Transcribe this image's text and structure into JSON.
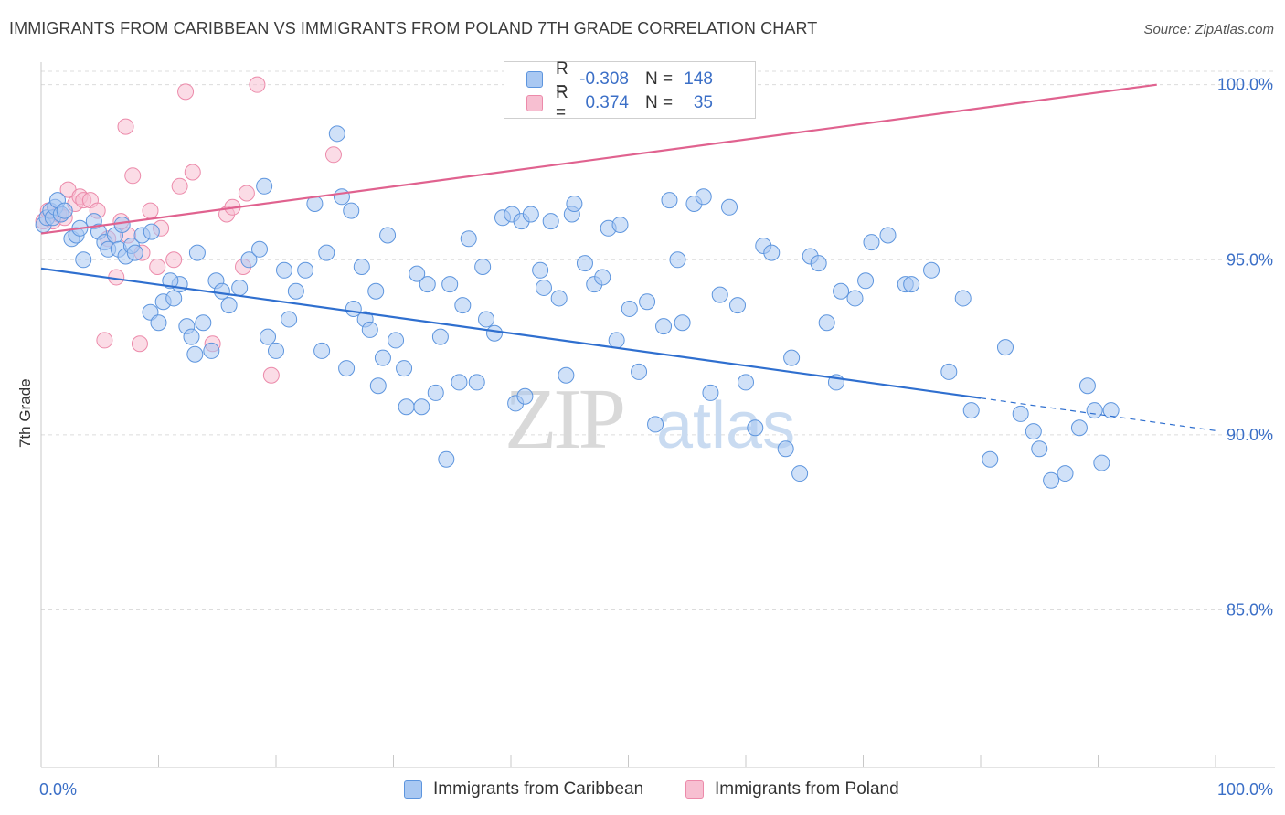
{
  "title": "IMMIGRANTS FROM CARIBBEAN VS IMMIGRANTS FROM POLAND 7TH GRADE CORRELATION CHART",
  "source": "Source: ZipAtlas.com",
  "watermark": {
    "zip": "ZIP",
    "atlas": "atlas"
  },
  "legend": {
    "rows": [
      {
        "r_label": "R =",
        "r_value": "-0.308",
        "n_label": "N =",
        "n_value": "148"
      },
      {
        "r_label": "R =",
        "r_value": "0.374",
        "n_label": "N =",
        "n_value": "35"
      }
    ]
  },
  "bottom_legend": {
    "series1": "Immigrants from Caribbean",
    "series2": "Immigrants from Poland"
  },
  "colors": {
    "blue_fill": "#a9c8f2",
    "blue_stroke": "#5d95de",
    "blue_line": "#2f6fcf",
    "pink_fill": "#f7bfd1",
    "pink_stroke": "#ec8aaa",
    "pink_line": "#e0628f",
    "tick_label": "#3b6fc7",
    "grid": "#dcdcdc"
  },
  "chart_data": {
    "type": "scatter",
    "title": "IMMIGRANTS FROM CARIBBEAN VS IMMIGRANTS FROM POLAND 7TH GRADE CORRELATION CHART",
    "xlabel": "",
    "ylabel": "7th Grade",
    "xlim": [
      0,
      100
    ],
    "ylim": [
      80.5,
      100.8
    ],
    "x_tick_labels": [
      "0.0%",
      "100.0%"
    ],
    "y_ticks": [
      85,
      90,
      95,
      100
    ],
    "y_tick_labels": [
      "85.0%",
      "90.0%",
      "95.0%",
      "100.0%"
    ],
    "grid": true,
    "series": [
      {
        "name": "Immigrants from Caribbean",
        "color": "blue",
        "R": -0.308,
        "N": 148,
        "trend": {
          "x0": 0,
          "y0": 94.75,
          "x1": 80,
          "y1": 91.05,
          "dash_to_x": 100,
          "dash_to_y": 90.12
        },
        "points": [
          [
            0.2,
            96.0
          ],
          [
            0.5,
            96.2
          ],
          [
            0.8,
            96.4
          ],
          [
            1.0,
            96.2
          ],
          [
            1.2,
            96.5
          ],
          [
            1.4,
            96.7
          ],
          [
            1.7,
            96.3
          ],
          [
            2.0,
            96.4
          ],
          [
            2.6,
            95.6
          ],
          [
            3.0,
            95.7
          ],
          [
            3.3,
            95.9
          ],
          [
            3.6,
            95.0
          ],
          [
            4.5,
            96.1
          ],
          [
            4.9,
            95.8
          ],
          [
            5.4,
            95.5
          ],
          [
            5.7,
            95.3
          ],
          [
            6.3,
            95.7
          ],
          [
            6.6,
            95.3
          ],
          [
            6.9,
            96.0
          ],
          [
            7.2,
            95.1
          ],
          [
            7.7,
            95.4
          ],
          [
            8.0,
            95.2
          ],
          [
            8.6,
            95.7
          ],
          [
            9.4,
            95.8
          ],
          [
            9.3,
            93.5
          ],
          [
            10.0,
            93.2
          ],
          [
            10.4,
            93.8
          ],
          [
            11.3,
            93.9
          ],
          [
            11.8,
            94.3
          ],
          [
            12.4,
            93.1
          ],
          [
            11.0,
            94.4
          ],
          [
            13.3,
            95.2
          ],
          [
            13.8,
            93.2
          ],
          [
            13.1,
            92.3
          ],
          [
            12.8,
            92.8
          ],
          [
            14.5,
            92.4
          ],
          [
            14.9,
            94.4
          ],
          [
            15.4,
            94.1
          ],
          [
            16.0,
            93.7
          ],
          [
            16.9,
            94.2
          ],
          [
            17.7,
            95.0
          ],
          [
            18.6,
            95.3
          ],
          [
            19.0,
            97.1
          ],
          [
            19.3,
            92.8
          ],
          [
            20.0,
            92.4
          ],
          [
            20.7,
            94.7
          ],
          [
            21.1,
            93.3
          ],
          [
            21.7,
            94.1
          ],
          [
            22.5,
            94.7
          ],
          [
            23.3,
            96.6
          ],
          [
            23.9,
            92.4
          ],
          [
            24.3,
            95.2
          ],
          [
            25.2,
            98.6
          ],
          [
            25.6,
            96.8
          ],
          [
            26.0,
            91.9
          ],
          [
            26.4,
            96.4
          ],
          [
            26.6,
            93.6
          ],
          [
            27.3,
            94.8
          ],
          [
            27.6,
            93.3
          ],
          [
            28.0,
            93.0
          ],
          [
            28.5,
            94.1
          ],
          [
            28.7,
            91.4
          ],
          [
            29.1,
            92.2
          ],
          [
            29.5,
            95.7
          ],
          [
            30.2,
            92.7
          ],
          [
            30.9,
            91.9
          ],
          [
            31.1,
            90.8
          ],
          [
            32.0,
            94.6
          ],
          [
            32.4,
            90.8
          ],
          [
            32.9,
            94.3
          ],
          [
            33.6,
            91.2
          ],
          [
            34.0,
            92.8
          ],
          [
            34.5,
            89.3
          ],
          [
            34.8,
            94.3
          ],
          [
            35.6,
            91.5
          ],
          [
            35.9,
            93.7
          ],
          [
            36.4,
            95.6
          ],
          [
            37.1,
            91.5
          ],
          [
            37.6,
            94.8
          ],
          [
            37.9,
            93.3
          ],
          [
            38.6,
            92.9
          ],
          [
            39.3,
            96.2
          ],
          [
            40.1,
            96.3
          ],
          [
            40.4,
            90.9
          ],
          [
            40.9,
            96.1
          ],
          [
            41.2,
            91.1
          ],
          [
            41.7,
            96.3
          ],
          [
            42.5,
            94.7
          ],
          [
            42.8,
            94.2
          ],
          [
            43.4,
            96.1
          ],
          [
            44.1,
            93.9
          ],
          [
            44.7,
            91.7
          ],
          [
            45.2,
            96.3
          ],
          [
            45.4,
            96.6
          ],
          [
            46.3,
            94.9
          ],
          [
            47.1,
            94.3
          ],
          [
            47.8,
            94.5
          ],
          [
            48.3,
            95.9
          ],
          [
            49.0,
            92.7
          ],
          [
            49.3,
            96.0
          ],
          [
            50.1,
            93.6
          ],
          [
            50.9,
            91.8
          ],
          [
            51.6,
            93.8
          ],
          [
            52.3,
            90.3
          ],
          [
            53.0,
            93.1
          ],
          [
            53.5,
            96.7
          ],
          [
            54.2,
            95.0
          ],
          [
            54.6,
            93.2
          ],
          [
            55.6,
            96.6
          ],
          [
            56.4,
            96.8
          ],
          [
            57.0,
            91.2
          ],
          [
            57.8,
            94.0
          ],
          [
            58.6,
            96.5
          ],
          [
            59.3,
            93.7
          ],
          [
            60.0,
            91.5
          ],
          [
            60.8,
            90.2
          ],
          [
            61.5,
            95.4
          ],
          [
            62.2,
            95.2
          ],
          [
            63.4,
            89.6
          ],
          [
            63.9,
            92.2
          ],
          [
            64.6,
            88.9
          ],
          [
            65.5,
            95.1
          ],
          [
            66.2,
            94.9
          ],
          [
            66.9,
            93.2
          ],
          [
            67.7,
            91.5
          ],
          [
            68.1,
            94.1
          ],
          [
            69.3,
            93.9
          ],
          [
            70.2,
            94.4
          ],
          [
            70.7,
            95.5
          ],
          [
            72.1,
            95.7
          ],
          [
            73.6,
            94.3
          ],
          [
            74.1,
            94.3
          ],
          [
            75.8,
            94.7
          ],
          [
            77.3,
            91.8
          ],
          [
            78.5,
            93.9
          ],
          [
            79.2,
            90.7
          ],
          [
            80.8,
            89.3
          ],
          [
            82.1,
            92.5
          ],
          [
            83.4,
            90.6
          ],
          [
            84.5,
            90.1
          ],
          [
            85.0,
            89.6
          ],
          [
            86.0,
            88.7
          ],
          [
            87.2,
            88.9
          ],
          [
            88.4,
            90.2
          ],
          [
            89.1,
            91.4
          ],
          [
            89.7,
            90.7
          ],
          [
            90.3,
            89.2
          ],
          [
            91.1,
            90.7
          ]
        ]
      },
      {
        "name": "Immigrants from Poland",
        "color": "pink",
        "R": 0.374,
        "N": 35,
        "trend": {
          "x0": 0,
          "y0": 95.75,
          "x1": 95,
          "y1": 100.0
        },
        "points": [
          [
            0.2,
            96.1
          ],
          [
            0.6,
            96.4
          ],
          [
            1.0,
            96.1
          ],
          [
            1.5,
            96.3
          ],
          [
            2.0,
            96.2
          ],
          [
            2.3,
            97.0
          ],
          [
            2.9,
            96.6
          ],
          [
            3.3,
            96.8
          ],
          [
            3.6,
            96.7
          ],
          [
            4.2,
            96.7
          ],
          [
            4.8,
            96.4
          ],
          [
            5.7,
            95.6
          ],
          [
            6.4,
            94.5
          ],
          [
            6.8,
            96.1
          ],
          [
            7.4,
            95.7
          ],
          [
            5.4,
            92.7
          ],
          [
            7.2,
            98.8
          ],
          [
            7.8,
            97.4
          ],
          [
            8.4,
            92.6
          ],
          [
            8.6,
            95.2
          ],
          [
            9.3,
            96.4
          ],
          [
            9.9,
            94.8
          ],
          [
            10.2,
            95.9
          ],
          [
            11.3,
            95.0
          ],
          [
            11.8,
            97.1
          ],
          [
            12.3,
            99.8
          ],
          [
            12.9,
            97.5
          ],
          [
            14.6,
            92.6
          ],
          [
            15.8,
            96.3
          ],
          [
            16.3,
            96.5
          ],
          [
            17.2,
            94.8
          ],
          [
            17.5,
            96.9
          ],
          [
            18.4,
            100.0
          ],
          [
            19.6,
            91.7
          ],
          [
            24.9,
            98.0
          ]
        ]
      }
    ]
  }
}
